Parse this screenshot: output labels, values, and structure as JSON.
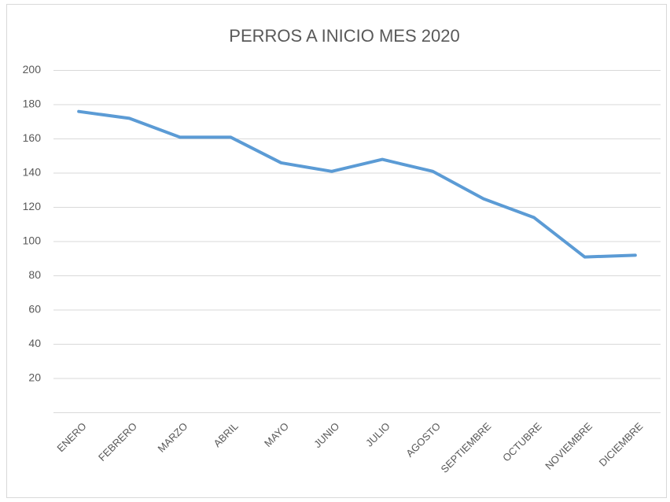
{
  "chart_data": {
    "type": "line",
    "title": "PERROS A INICIO MES 2020",
    "categories": [
      "ENERO",
      "FEBRERO",
      "MARZO",
      "ABRIL",
      "MAYO",
      "JUNIO",
      "JULIO",
      "AGOSTO",
      "SEPTIEMBRE",
      "OCTUBRE",
      "NOVIEMBRE",
      "DICIEMBRE"
    ],
    "values": [
      176,
      172,
      161,
      161,
      146,
      141,
      148,
      141,
      125,
      114,
      91,
      92
    ],
    "color": "#5b9bd5",
    "ylim": [
      0,
      200
    ],
    "yticks": [
      20,
      40,
      60,
      80,
      100,
      120,
      140,
      160,
      180,
      200
    ],
    "grid": true
  }
}
